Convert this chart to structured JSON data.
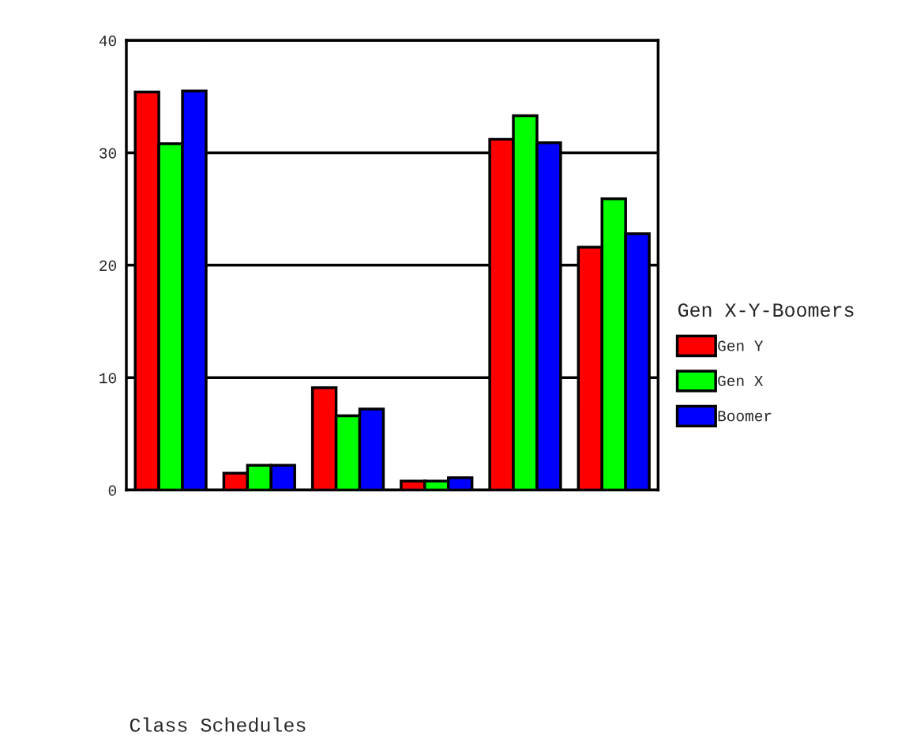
{
  "chart_data": {
    "type": "bar",
    "annotations": [
      "Class Schedules"
    ],
    "legend_title": "Gen X-Y-Boomers",
    "categories": [
      null,
      null,
      null,
      null,
      null,
      null
    ],
    "series": [
      {
        "name": "Gen Y",
        "color": "#ff0000",
        "values": [
          35.4,
          1.5,
          9.1,
          0.8,
          31.2,
          21.6
        ]
      },
      {
        "name": "Gen X",
        "color": "#00ff00",
        "values": [
          30.8,
          2.2,
          6.6,
          0.8,
          33.3,
          25.9
        ]
      },
      {
        "name": "Boomer",
        "color": "#0000ff",
        "values": [
          35.5,
          2.2,
          7.2,
          1.1,
          30.9,
          22.8
        ]
      }
    ],
    "ylim": [
      0,
      40
    ],
    "yticks": [
      0,
      10,
      20,
      30,
      40
    ],
    "grid": "y",
    "legend": "right"
  }
}
